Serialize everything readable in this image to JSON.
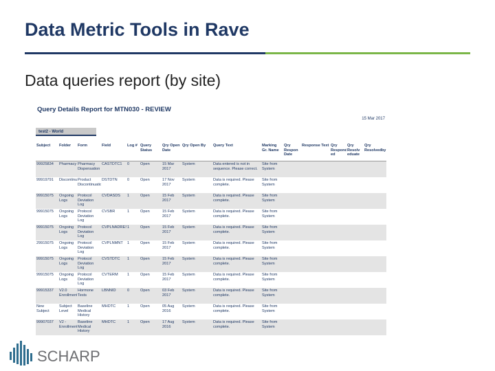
{
  "header": {
    "title": "Data Metric Tools in Rave",
    "subtitle": "Data queries report (by site)"
  },
  "report": {
    "title": "Query Details Report for MTN030 - REVIEW",
    "date": "15 Mar 2017",
    "tab": "test2 - World"
  },
  "table": {
    "headers": [
      "Subject",
      "Folder",
      "Form",
      "Field",
      "Log #",
      "Query Status",
      "Qry Open Date",
      "Qry Open By",
      "Query Text",
      "Marking Gr. Name",
      "Qry Respon Date",
      "Response Text",
      "Qry Respond ed",
      "Qry Resolv eduate",
      "Qry Resolvedby"
    ],
    "rows": [
      [
        "99925834",
        "Pharmacy",
        "Pharmacy Dispensation",
        "CASTDTC1",
        "0",
        "Open",
        "15 Mar 2017",
        "System",
        "Data entered is not in sequence. Please correct.",
        "Site from System",
        "",
        "",
        "",
        "",
        ""
      ],
      [
        "99919791",
        "Discontinuation",
        "Product Discontinuation",
        "DSTDTN",
        "0",
        "Open",
        "17 Nov 2017",
        "System",
        "Data is required. Please complete.",
        "Site from System",
        "",
        "",
        "",
        "",
        ""
      ],
      [
        "99915075",
        "Ongoing Logs",
        "Protocol Deviation Log",
        "CVDASDS",
        "1",
        "Open",
        "15 Feb 2017",
        "System",
        "Data is required. Please complete.",
        "Site from System",
        "",
        "",
        "",
        "",
        ""
      ],
      [
        "99915075",
        "Ongoing Logs",
        "Protocol Deviation Log",
        "CVSBR",
        "1",
        "Open",
        "15 Feb 2017",
        "System",
        "Data is required. Please complete.",
        "Site from System",
        "",
        "",
        "",
        "",
        ""
      ],
      [
        "99915075",
        "Ongoing Logs",
        "Protocol Deviation Log",
        "CVPLNADRES",
        "1",
        "Open",
        "15 Feb 2017",
        "System",
        "Data is required. Please complete.",
        "Site from System",
        "",
        "",
        "",
        "",
        ""
      ],
      [
        "29915075",
        "Ongoing Logs",
        "Protocol Deviation Log",
        "CVPLNMNT",
        "1",
        "Open",
        "15 Feb 2017",
        "System",
        "Data is required. Please complete.",
        "Site from System",
        "",
        "",
        "",
        "",
        ""
      ],
      [
        "99915075",
        "Ongoing Logs",
        "Protocol Deviation Log",
        "CVSTDTC",
        "1",
        "Open",
        "15 Feb 2017",
        "System",
        "Data is required. Please complete.",
        "Site from System",
        "",
        "",
        "",
        "",
        ""
      ],
      [
        "99915075",
        "Ongoing Logs",
        "Protocol Deviation Log",
        "CVTERM",
        "1",
        "Open",
        "15 Feb 2017",
        "System",
        "Data is required. Please complete.",
        "Site from System",
        "",
        "",
        "",
        "",
        ""
      ],
      [
        "99915337",
        "V2.0 Enrollment",
        "Hormone Tests",
        "LBNNID",
        "0",
        "Open",
        "03 Feb 2017",
        "System",
        "Data is required. Please complete.",
        "Site from System",
        "",
        "",
        "",
        "",
        ""
      ],
      [
        "New Subject",
        "Subject Level",
        "Baseline Medical History",
        "MHDTC",
        "1",
        "Open",
        "05 Aug 2016",
        "System",
        "Data is required. Please complete.",
        "Site from System",
        "",
        "",
        "",
        "",
        ""
      ],
      [
        "99907037",
        "V2 - Enrollment",
        "Baseline Medical History",
        "MHDTC",
        "1",
        "Open",
        "17 Aug 2016",
        "System",
        "Data is required. Please complete.",
        "Site from System",
        "",
        "",
        "",
        "",
        ""
      ]
    ]
  },
  "footer": {
    "logo": "SCHARP"
  }
}
